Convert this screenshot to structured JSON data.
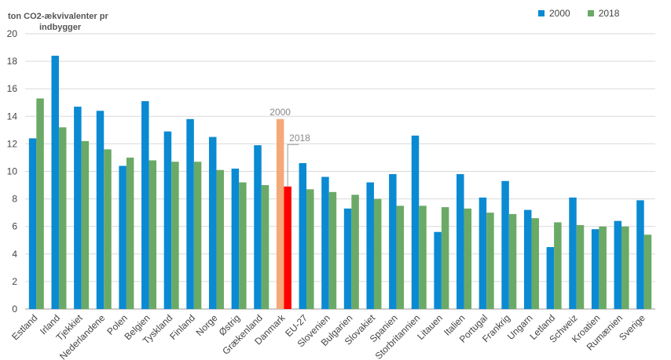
{
  "chart_data": {
    "type": "bar",
    "ylabel_line1": "ton CO2-ækvivalenter pr",
    "ylabel_line2": "indbygger",
    "ylim": [
      0,
      20
    ],
    "yticks": [
      0,
      2,
      4,
      6,
      8,
      10,
      12,
      14,
      16,
      18,
      20
    ],
    "grid": true,
    "legend_position": "top-right",
    "categories": [
      "Estland",
      "Irland",
      "Tjekkiet",
      "Nederlandene",
      "Polen",
      "Belgien",
      "Tyskland",
      "Finland",
      "Norge",
      "Østrig",
      "Grækenland",
      "Danmark",
      "EU-27",
      "Slovenien",
      "Bulgarien",
      "Slovakiet",
      "Spanien",
      "Storbritannien",
      "Litauen",
      "Italien",
      "Portugal",
      "Frankrig",
      "Ungarn",
      "Letland",
      "Schweiz",
      "Kroatien",
      "Rumænien",
      "Sverige"
    ],
    "series": [
      {
        "name": "2000",
        "color": "#0a8ad2",
        "values": [
          12.4,
          18.4,
          14.7,
          14.4,
          10.4,
          15.1,
          12.9,
          13.8,
          12.5,
          10.2,
          11.9,
          13.8,
          10.6,
          9.6,
          7.3,
          9.2,
          9.8,
          12.6,
          5.6,
          9.8,
          8.1,
          9.3,
          7.2,
          4.5,
          8.1,
          5.8,
          6.4,
          7.9
        ]
      },
      {
        "name": "2018",
        "color": "#6aaa66",
        "values": [
          15.3,
          13.2,
          12.2,
          11.6,
          11.0,
          10.8,
          10.7,
          10.7,
          10.1,
          9.2,
          9.0,
          8.9,
          8.7,
          8.5,
          8.3,
          8.0,
          7.5,
          7.5,
          7.4,
          7.3,
          7.0,
          6.9,
          6.6,
          6.3,
          6.1,
          6.0,
          6.0,
          5.4
        ]
      }
    ],
    "highlight": {
      "category": "Danmark",
      "color_2000": "#f5a878",
      "color_2018": "#ff0000",
      "annotation_2000": "2000",
      "annotation_2018": "2018"
    }
  }
}
